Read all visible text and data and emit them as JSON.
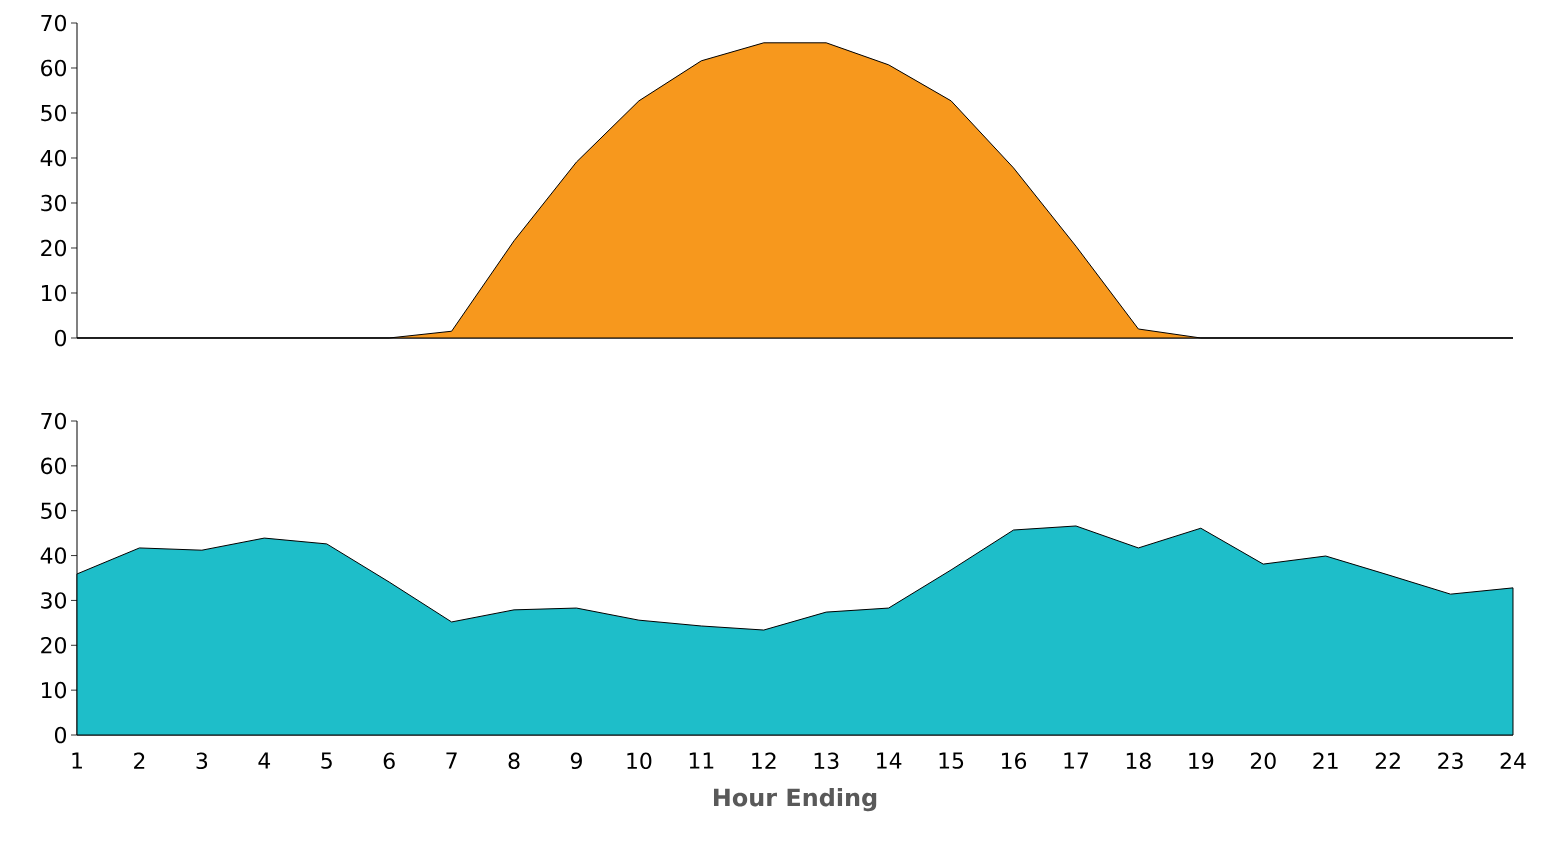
{
  "chart_data": [
    {
      "type": "area",
      "categories": [
        "1",
        "2",
        "3",
        "4",
        "5",
        "6",
        "7",
        "8",
        "9",
        "10",
        "11",
        "12",
        "13",
        "14",
        "15",
        "16",
        "17",
        "18",
        "19",
        "20",
        "21",
        "22",
        "23",
        "24"
      ],
      "color": "#f7981d",
      "values": [
        0,
        0,
        0,
        0,
        0,
        0,
        1.5,
        21.6,
        39.1,
        52.7,
        61.6,
        65.6,
        65.6,
        60.7,
        52.7,
        37.8,
        20.4,
        2,
        0,
        0,
        0,
        0,
        0,
        0
      ],
      "ylim": [
        0,
        70
      ],
      "yticks": [
        0,
        10,
        20,
        30,
        40,
        50,
        60,
        70
      ],
      "tick_labels": "y"
    },
    {
      "type": "area",
      "categories": [
        "1",
        "2",
        "3",
        "4",
        "5",
        "6",
        "7",
        "8",
        "9",
        "10",
        "11",
        "12",
        "13",
        "14",
        "15",
        "16",
        "17",
        "18",
        "19",
        "20",
        "21",
        "22",
        "23",
        "24"
      ],
      "color": "#1ebec9",
      "values": [
        35.9,
        41.7,
        41.2,
        43.9,
        42.6,
        34.1,
        25.2,
        27.9,
        28.3,
        25.6,
        24.3,
        23.4,
        27.4,
        28.3,
        36.8,
        45.7,
        46.6,
        41.7,
        46.1,
        38.1,
        39.9,
        35.7,
        31.4,
        32.8
      ],
      "ylim": [
        0,
        70
      ],
      "yticks": [
        0,
        10,
        20,
        30,
        40,
        50,
        60,
        70
      ],
      "xlabel": "Hour Ending"
    }
  ]
}
